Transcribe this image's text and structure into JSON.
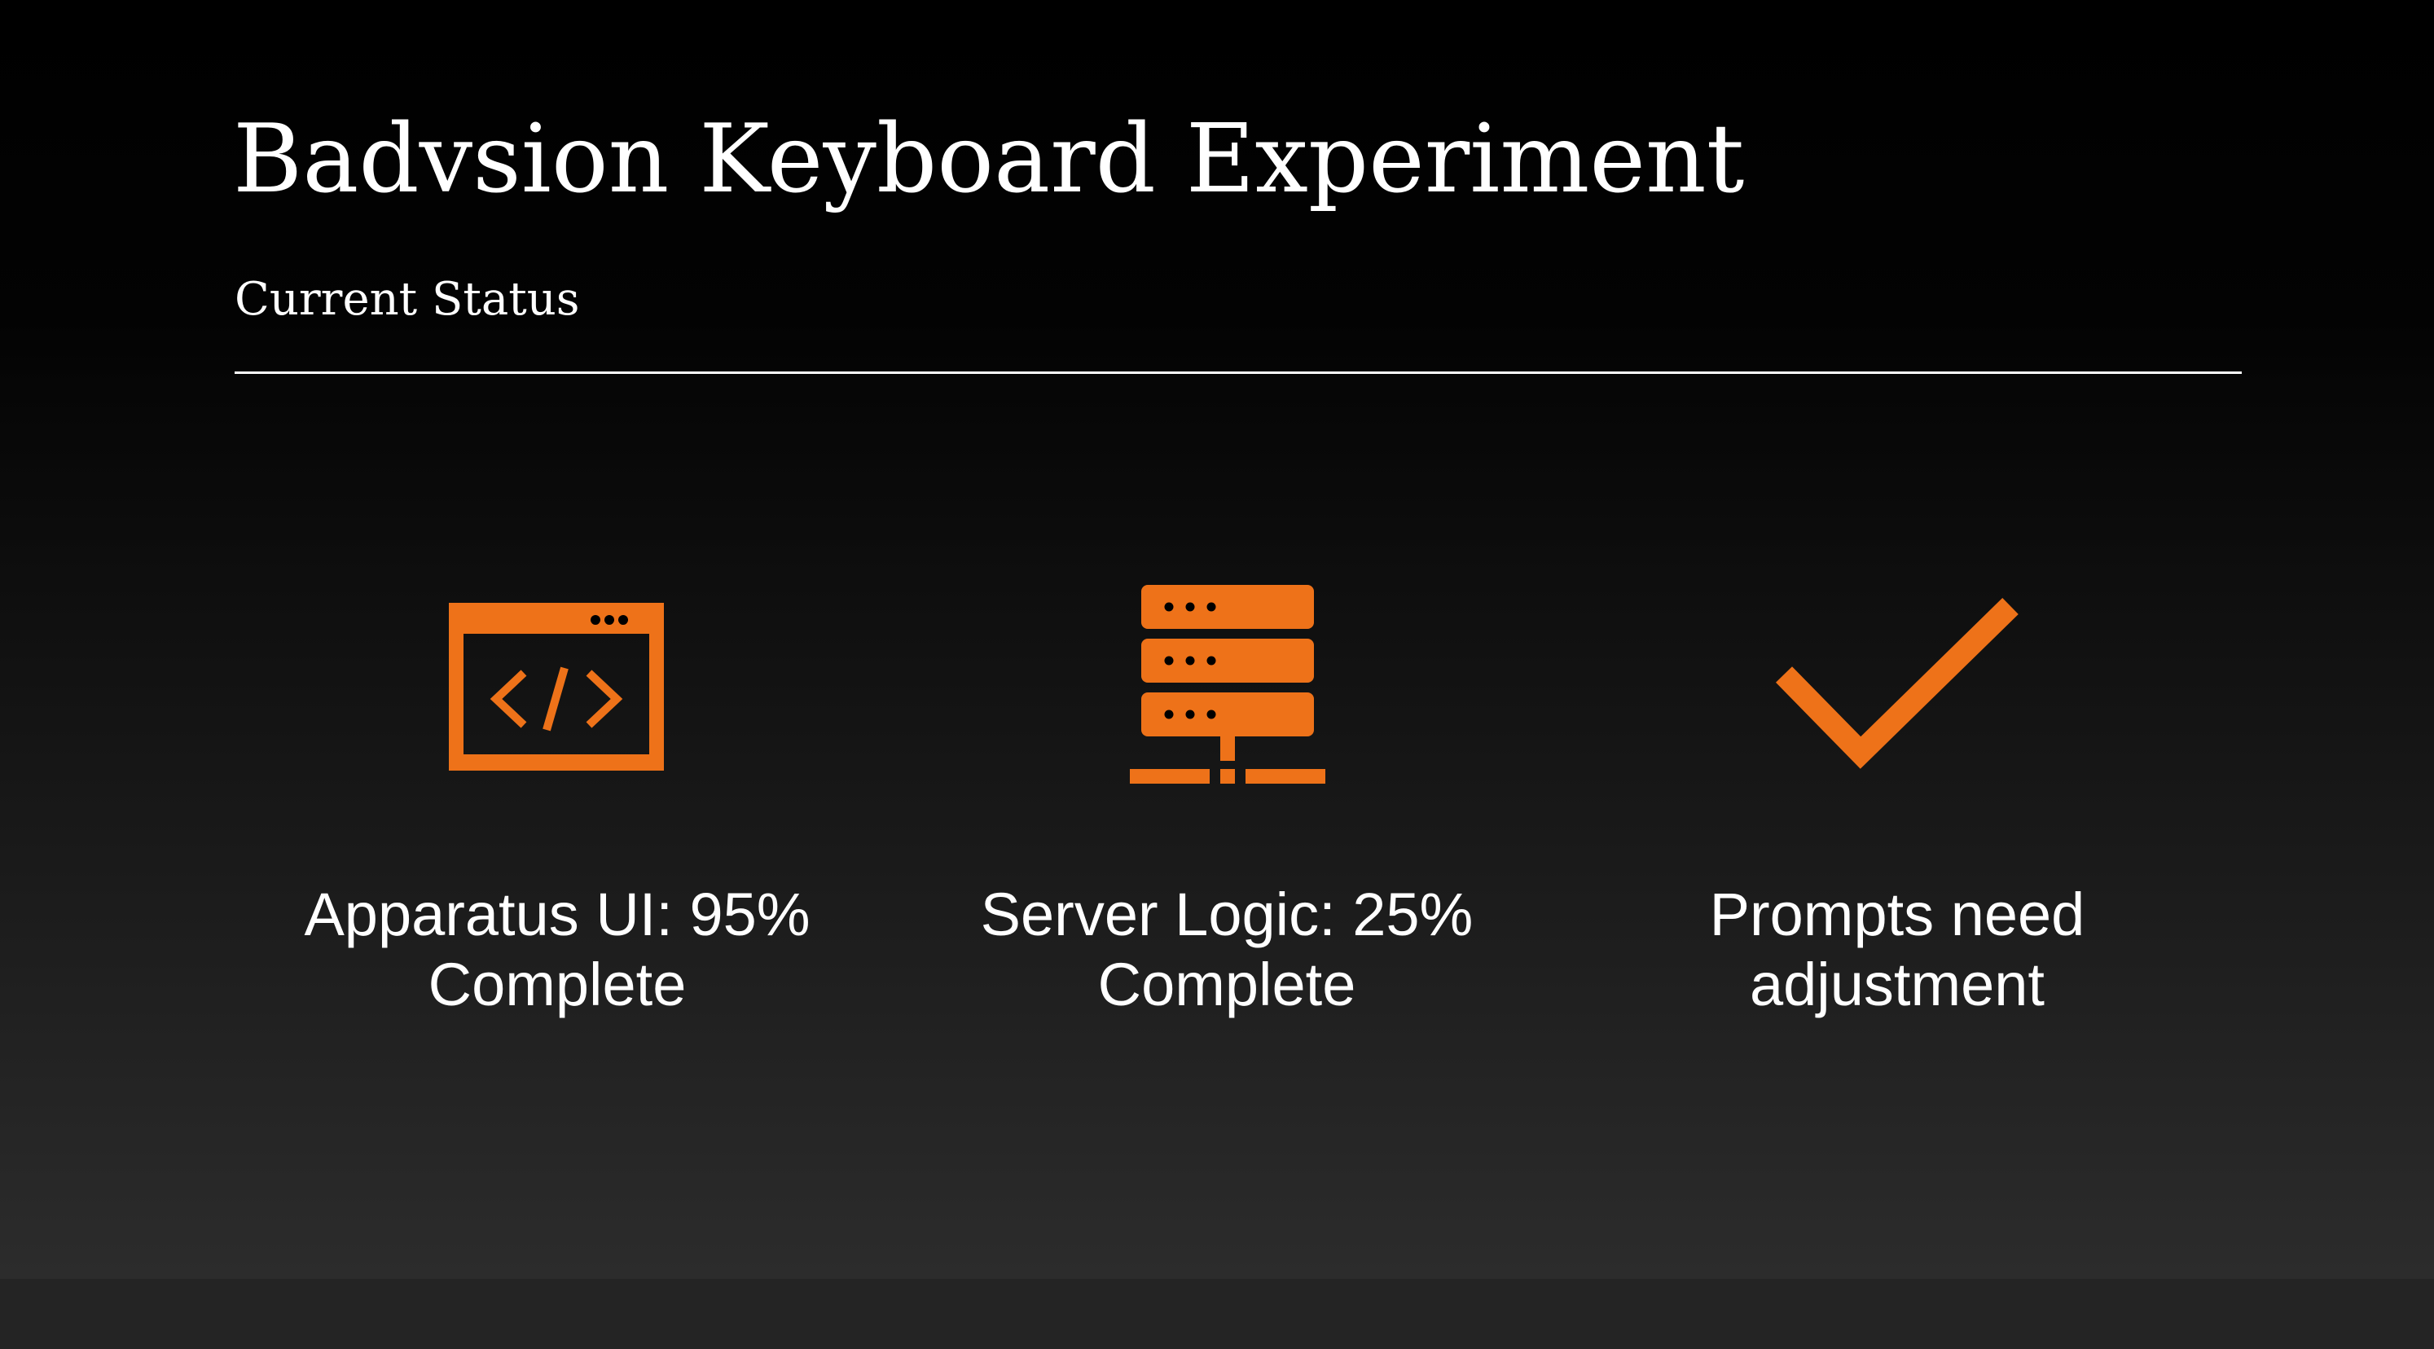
{
  "slide": {
    "title": "Badvsion Keyboard Experiment",
    "subtitle": "Current Status"
  },
  "status_items": [
    {
      "icon": "code-window-icon",
      "line1": "Apparatus UI: 95%",
      "line2": "Complete"
    },
    {
      "icon": "server-icon",
      "line1": "Server Logic: 25%",
      "line2": "Complete"
    },
    {
      "icon": "checkmark-icon",
      "line1": "Prompts need",
      "line2": "adjustment"
    }
  ],
  "colors": {
    "accent": "#EE7219",
    "text": "#FFFFFF",
    "background_top": "#000000",
    "background_bottom": "#2C2C2C"
  }
}
